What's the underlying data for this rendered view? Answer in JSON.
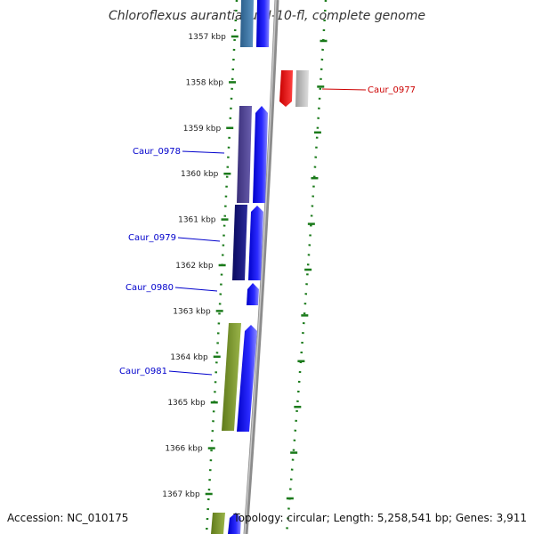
{
  "title": "Chloroflexus aurantiacus J-10-fl, complete genome",
  "footer": {
    "accession": "Accession: NC_010175",
    "stats": "Topology: circular; Length: 5,258,541 bp; Genes: 3,911"
  },
  "colors": {
    "tick": "#1a7a1a",
    "backbone": "#888888",
    "forward_gene": "#0000ee",
    "highlight_gene": "#ee0000",
    "label_blue": "#0000cc",
    "label_red": "#cc0000"
  },
  "ticks": [
    {
      "label": "1357 kbp"
    },
    {
      "label": "1358 kbp"
    },
    {
      "label": "1359 kbp"
    },
    {
      "label": "1360 kbp"
    },
    {
      "label": "1361 kbp"
    },
    {
      "label": "1362 kbp"
    },
    {
      "label": "1363 kbp"
    },
    {
      "label": "1364 kbp"
    },
    {
      "label": "1365 kbp"
    },
    {
      "label": "1366 kbp"
    },
    {
      "label": "1367 kbp"
    }
  ],
  "gene_labels": [
    {
      "text": "Caur_0977",
      "color": "red"
    },
    {
      "text": "Caur_0978",
      "color": "blue"
    },
    {
      "text": "Caur_0979",
      "color": "blue"
    },
    {
      "text": "Caur_0980",
      "color": "blue"
    },
    {
      "text": "Caur_0981",
      "color": "blue"
    }
  ]
}
